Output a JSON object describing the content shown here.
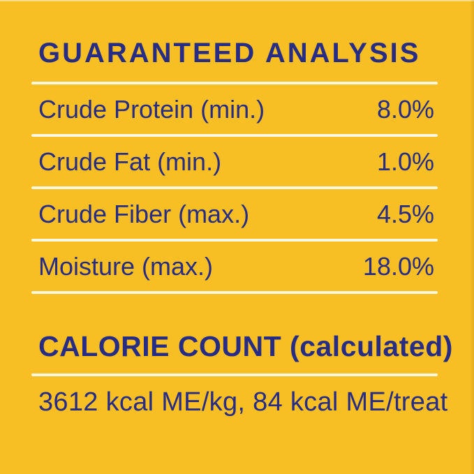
{
  "label": {
    "title": "GUARANTEED ANALYSIS",
    "analysis_rows": [
      {
        "name": "Crude Protein (min.)",
        "value": "8.0%"
      },
      {
        "name": "Crude Fat (min.)",
        "value": "1.0%"
      },
      {
        "name": "Crude Fiber (max.)",
        "value": "4.5%"
      },
      {
        "name": "Moisture (max.)",
        "value": "18.0%"
      }
    ],
    "calorie_heading": "CALORIE COUNT (calculated)",
    "calorie_text": "3612 kcal ME/kg, 84 kcal ME/treat",
    "colors": {
      "background": "#F7BF23",
      "text": "#272C85",
      "divider": "#FBF7E0"
    }
  }
}
